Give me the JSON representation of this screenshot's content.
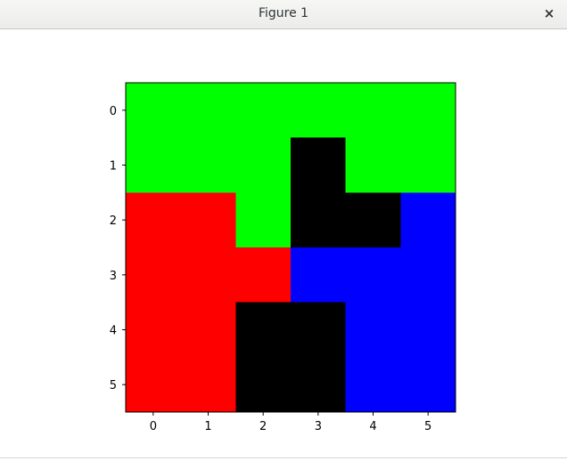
{
  "window": {
    "title": "Figure 1",
    "close_glyph": "×",
    "close_icon": "close-icon"
  },
  "chart_data": {
    "type": "heatmap",
    "title": "",
    "xlabel": "",
    "ylabel": "",
    "x_ticks": [
      "0",
      "1",
      "2",
      "3",
      "4",
      "5"
    ],
    "y_ticks": [
      "0",
      "1",
      "2",
      "3",
      "4",
      "5"
    ],
    "palette": {
      "G": "#00ff00",
      "R": "#ff0000",
      "B": "#0000ff",
      "K": "#000000"
    },
    "grid": [
      [
        "G",
        "G",
        "G",
        "G",
        "G",
        "G"
      ],
      [
        "G",
        "G",
        "G",
        "K",
        "G",
        "G"
      ],
      [
        "R",
        "R",
        "G",
        "K",
        "K",
        "B"
      ],
      [
        "R",
        "R",
        "R",
        "B",
        "B",
        "B"
      ],
      [
        "R",
        "R",
        "K",
        "K",
        "B",
        "B"
      ],
      [
        "R",
        "R",
        "K",
        "K",
        "B",
        "B"
      ]
    ],
    "grid_lines": false,
    "legend": "none"
  }
}
